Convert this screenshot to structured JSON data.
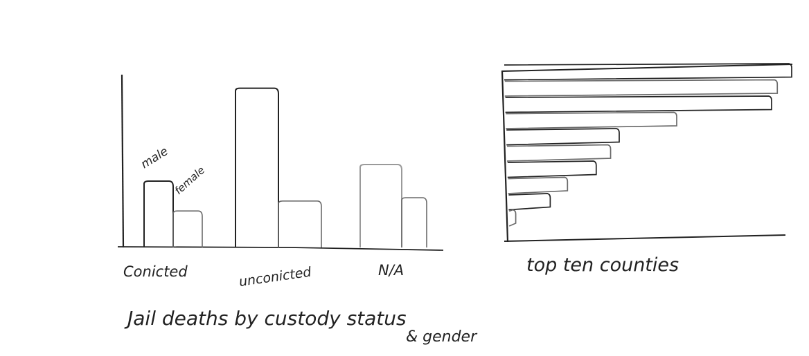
{
  "chart_data": [
    {
      "type": "bar",
      "title": "Jail deaths by custody status",
      "title_line2": "& gender",
      "categories": [
        "Conicted",
        "unconicted",
        "N/A"
      ],
      "series": [
        {
          "name": "male",
          "values": [
            4.0,
            9.6,
            5.0
          ]
        },
        {
          "name": "female",
          "values": [
            2.2,
            2.8,
            3.0
          ]
        }
      ],
      "ylim": [
        0,
        10
      ],
      "grid": false
    },
    {
      "type": "bar",
      "orientation": "horizontal",
      "title": "top ten counties",
      "values": [
        10.0,
        9.5,
        9.3,
        6.0,
        4.0,
        3.7,
        3.2,
        2.2,
        1.6,
        0.4
      ],
      "xlim": [
        0,
        10
      ],
      "grid": false
    }
  ],
  "colors": {
    "ink": "#222222",
    "pencil": "#6a6a6a",
    "paper": "#ffffff"
  }
}
